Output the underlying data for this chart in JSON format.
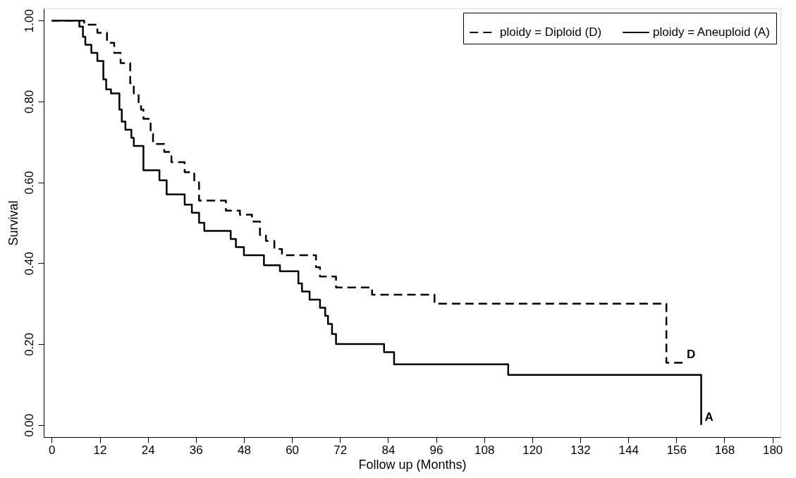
{
  "chart_data": {
    "type": "step",
    "xlabel": "Follow up (Months)",
    "ylabel": "Survival",
    "series": [
      {
        "name": "ploidy = Diploid (D)",
        "color": "#000000",
        "line_style": "dashed",
        "x": [
          0,
          8.1,
          11.4,
          13.8,
          15.6,
          17.2,
          19.6,
          20.5,
          21.7,
          22.3,
          22.9,
          24.7,
          25.3,
          28.1,
          29.9,
          33.2,
          35.6,
          36.8,
          43.5,
          47,
          50,
          52,
          53.5,
          55.6,
          57.5,
          66,
          67,
          71,
          80,
          95.6,
          153.5,
          157.7
        ],
        "values": [
          1,
          0.99,
          0.97,
          0.945,
          0.92,
          0.895,
          0.845,
          0.82,
          0.795,
          0.78,
          0.757,
          0.72,
          0.695,
          0.675,
          0.65,
          0.625,
          0.6,
          0.555,
          0.53,
          0.52,
          0.503,
          0.47,
          0.455,
          0.435,
          0.42,
          0.39,
          0.367,
          0.34,
          0.322,
          0.3,
          0.154,
          0.154
        ]
      },
      {
        "name": "ploidy = Aneuploid (A)",
        "color": "#000000",
        "line_style": "solid",
        "x": [
          0,
          6.9,
          7.8,
          8.4,
          9.9,
          11.4,
          12.9,
          13.6,
          14.8,
          16.9,
          17.5,
          18.4,
          19.9,
          20.5,
          22.9,
          26.9,
          28.7,
          33.2,
          35,
          36.8,
          38.1,
          44.7,
          46,
          48,
          53,
          57,
          61.6,
          62.5,
          64.4,
          67,
          68.3,
          69,
          70,
          71,
          83,
          85.5,
          114,
          162.2
        ],
        "values": [
          1,
          0.985,
          0.96,
          0.94,
          0.92,
          0.9,
          0.855,
          0.83,
          0.82,
          0.78,
          0.75,
          0.73,
          0.71,
          0.69,
          0.63,
          0.605,
          0.57,
          0.545,
          0.525,
          0.5,
          0.48,
          0.46,
          0.44,
          0.42,
          0.395,
          0.38,
          0.35,
          0.33,
          0.31,
          0.29,
          0.27,
          0.25,
          0.225,
          0.2,
          0.18,
          0.15,
          0.124,
          0
        ]
      }
    ],
    "xlim": [
      -2,
      182
    ],
    "xticks": [
      0,
      12,
      24,
      36,
      48,
      60,
      72,
      84,
      96,
      108,
      120,
      132,
      144,
      156,
      168,
      180
    ],
    "ylim": [
      -0.03,
      1.03
    ],
    "yticks": [
      {
        "value": 0,
        "label": "0.00"
      },
      {
        "value": 0.2,
        "label": "0.20"
      },
      {
        "value": 0.4,
        "label": "0.40"
      },
      {
        "value": 0.6,
        "label": "0.60"
      },
      {
        "value": 0.8,
        "label": "0.80"
      },
      {
        "value": 1,
        "label": "1.00"
      }
    ],
    "annotations": [
      "D",
      "A"
    ],
    "legend": "top right",
    "grid": false
  }
}
